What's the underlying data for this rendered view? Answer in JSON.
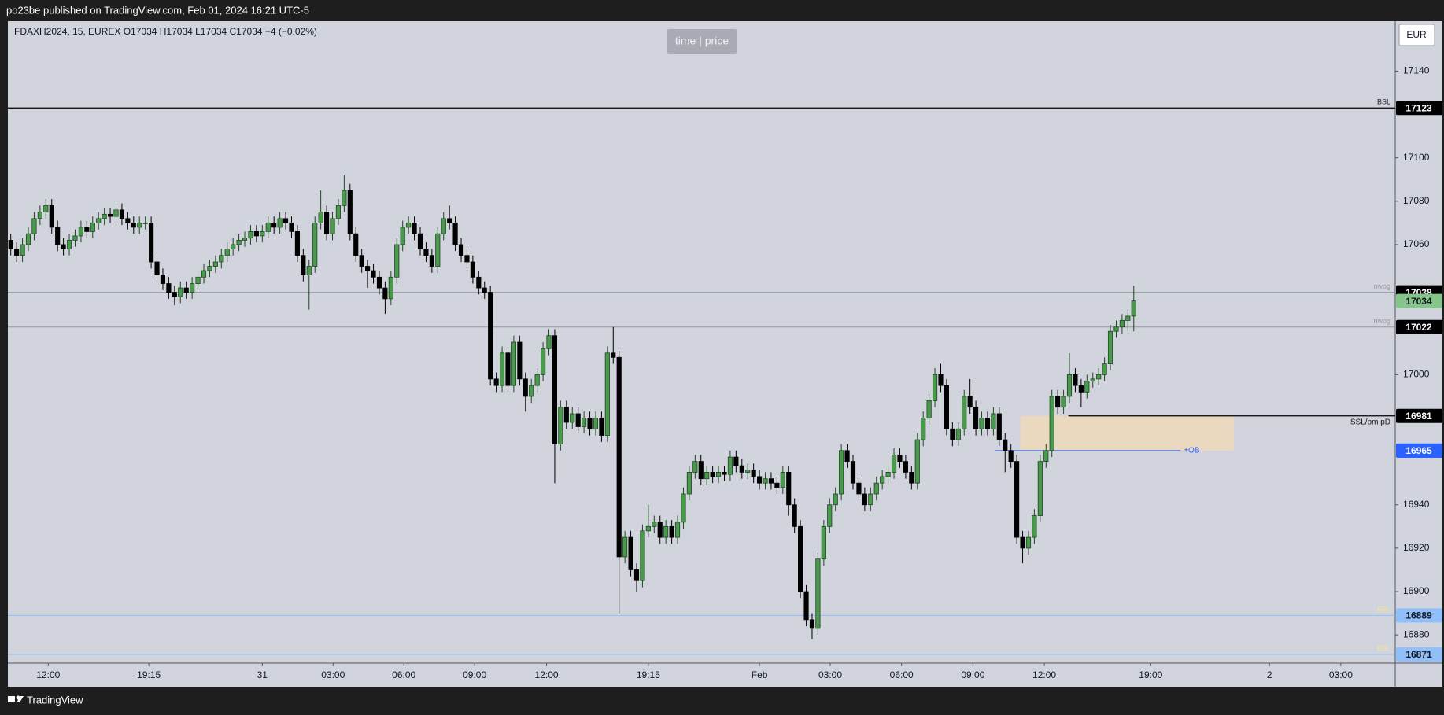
{
  "header": {
    "publisher": "po23be published on TradingView.com, Feb 01, 2024 16:21 UTC-5",
    "button": "time | price",
    "currency": "EUR",
    "footer": "TradingView"
  },
  "chart_data": {
    "type": "candlestick",
    "title": "FDAXH2024, 15, EUREX  O17034  H17034  L17034  C17034  −4 (−0.02%)",
    "up_color": "#4a9a4d",
    "up_border": "#1e4620",
    "down_color": "#000000",
    "grid": false,
    "ylim": [
      16867,
      17163
    ],
    "yticks": [
      16880,
      16900,
      16920,
      16940,
      17000,
      17060,
      17080,
      17100,
      17140
    ],
    "xlim": [
      -0.5,
      236.7
    ],
    "xticks": [
      {
        "value": 6.4,
        "label": "12:00"
      },
      {
        "value": 23.6,
        "label": "19:15"
      },
      {
        "value": 43,
        "label": "31"
      },
      {
        "value": 55.1,
        "label": "03:00"
      },
      {
        "value": 67.2,
        "label": "06:00"
      },
      {
        "value": 79.3,
        "label": "09:00"
      },
      {
        "value": 91.6,
        "label": "12:00"
      },
      {
        "value": 109,
        "label": "19:15"
      },
      {
        "value": 128,
        "label": "Feb"
      },
      {
        "value": 140.1,
        "label": "03:00"
      },
      {
        "value": 152.3,
        "label": "06:00"
      },
      {
        "value": 164.5,
        "label": "09:00"
      },
      {
        "value": 176.7,
        "label": "12:00"
      },
      {
        "value": 194.9,
        "label": "19:00"
      },
      {
        "value": 215.2,
        "label": "2"
      },
      {
        "value": 227.4,
        "label": "03:00"
      }
    ],
    "open": [
      17062,
      17058,
      17055,
      17060,
      17065,
      17072,
      17075,
      17078,
      17068,
      17060,
      17058,
      17062,
      17064,
      17068,
      17066,
      17070,
      17072,
      17074,
      17073,
      17076,
      17072,
      17070,
      17068,
      17070,
      17070,
      17052,
      17046,
      17042,
      17038,
      17036,
      17040,
      17038,
      17042,
      17045,
      17048,
      17050,
      17052,
      17055,
      17058,
      17060,
      17062,
      17063,
      17066,
      17064,
      17066,
      17070,
      17068,
      17072,
      17070,
      17066,
      17055,
      17046,
      17050,
      17070,
      17075,
      17065,
      17072,
      17078,
      17085,
      17065,
      17055,
      17050,
      17048,
      17045,
      17040,
      17035,
      17045,
      17060,
      17068,
      17070,
      17065,
      17058,
      17055,
      17050,
      17065,
      17072,
      17070,
      17060,
      17055,
      17052,
      17045,
      17040,
      17038,
      16998,
      16995,
      17010,
      16995,
      17015,
      16998,
      16990,
      16995,
      17000,
      17012,
      17018,
      16968,
      16985,
      16978,
      16982,
      16976,
      16980,
      16975,
      16980,
      16972,
      17010,
      17008,
      16916,
      16925,
      16910,
      16905,
      16928,
      16930,
      16932,
      16925,
      16930,
      16925,
      16932,
      16945,
      16955,
      16960,
      16952,
      16955,
      16953,
      16955,
      16954,
      16962,
      16958,
      16955,
      16956,
      16953,
      16950,
      16952,
      16950,
      16948,
      16955,
      16940,
      16930,
      16900,
      16887,
      16883,
      16915,
      16930,
      16940,
      16945,
      16965,
      16960,
      16950,
      16945,
      16940,
      16945,
      16950,
      16953,
      16955,
      16963,
      16960,
      16955,
      16950,
      16970,
      16980,
      16988,
      17000,
      16995,
      16975,
      16970,
      16975,
      16990,
      16985,
      16975,
      16980,
      16975,
      16982,
      16970,
      16965,
      16960,
      16925,
      16920,
      16925,
      16935,
      16960,
      16965,
      16990,
      16985,
      16990,
      17000,
      16995,
      16992,
      16997,
      16998,
      17000,
      17005,
      17020,
      17022,
      17025,
      17027
    ],
    "high": [
      17065,
      17061,
      17063,
      17068,
      17075,
      17078,
      17081,
      17081,
      17071,
      17063,
      17065,
      17067,
      17071,
      17071,
      17073,
      17075,
      17077,
      17077,
      17079,
      17079,
      17075,
      17073,
      17073,
      17073,
      17073,
      17055,
      17049,
      17045,
      17041,
      17043,
      17043,
      17045,
      17048,
      17051,
      17053,
      17055,
      17058,
      17061,
      17063,
      17065,
      17066,
      17069,
      17069,
      17069,
      17073,
      17073,
      17075,
      17075,
      17073,
      17069,
      17058,
      17053,
      17073,
      17085,
      17078,
      17075,
      17081,
      17092,
      17088,
      17068,
      17058,
      17053,
      17051,
      17048,
      17043,
      17048,
      17063,
      17071,
      17073,
      17073,
      17068,
      17061,
      17058,
      17068,
      17075,
      17078,
      17073,
      17063,
      17058,
      17055,
      17048,
      17043,
      17041,
      17001,
      17013,
      17013,
      17018,
      17018,
      17001,
      16998,
      17003,
      17015,
      17021,
      17021,
      16988,
      16988,
      16985,
      16985,
      16983,
      16983,
      16983,
      16983,
      17013,
      17022,
      17011,
      16928,
      16928,
      16913,
      16931,
      16940,
      16935,
      16935,
      16933,
      16933,
      16935,
      16948,
      16958,
      16963,
      16963,
      16958,
      16958,
      16958,
      16958,
      16965,
      16965,
      16961,
      16959,
      16959,
      16956,
      16955,
      16955,
      16953,
      16958,
      16958,
      16943,
      16933,
      16903,
      16890,
      16918,
      16933,
      16943,
      16948,
      16968,
      16968,
      16963,
      16953,
      16948,
      16948,
      16953,
      16956,
      16958,
      16966,
      16966,
      16963,
      16958,
      16973,
      16983,
      16991,
      17003,
      17005,
      16998,
      16978,
      16978,
      16993,
      16998,
      16988,
      16983,
      16983,
      16985,
      16985,
      16973,
      16968,
      16963,
      16928,
      16928,
      16938,
      16963,
      16968,
      16993,
      16993,
      16993,
      17010,
      17003,
      16998,
      17000,
      17001,
      17003,
      17008,
      17023,
      17025,
      17028,
      17030,
      17041
    ],
    "low": [
      17055,
      17052,
      17052,
      17057,
      17062,
      17069,
      17072,
      17065,
      17057,
      17055,
      17055,
      17059,
      17061,
      17063,
      17063,
      17067,
      17069,
      17070,
      17070,
      17069,
      17067,
      17065,
      17065,
      17067,
      17049,
      17043,
      17039,
      17035,
      17032,
      17033,
      17035,
      17035,
      17039,
      17042,
      17045,
      17047,
      17049,
      17052,
      17055,
      17057,
      17059,
      17060,
      17061,
      17061,
      17063,
      17065,
      17065,
      17067,
      17063,
      17052,
      17043,
      17030,
      17047,
      17067,
      17062,
      17062,
      17069,
      17075,
      17062,
      17052,
      17047,
      17040,
      17042,
      17037,
      17028,
      17032,
      17042,
      17057,
      17065,
      17062,
      17055,
      17052,
      17047,
      17047,
      17062,
      17067,
      17057,
      17052,
      17049,
      17042,
      17037,
      17035,
      16995,
      16992,
      16992,
      16992,
      16992,
      16995,
      16983,
      16987,
      16992,
      16997,
      17009,
      16950,
      16965,
      16975,
      16975,
      16973,
      16973,
      16972,
      16972,
      16969,
      16969,
      17005,
      16890,
      16913,
      16907,
      16900,
      16902,
      16925,
      16927,
      16922,
      16922,
      16922,
      16922,
      16929,
      16942,
      16952,
      16949,
      16949,
      16950,
      16950,
      16951,
      16951,
      16955,
      16952,
      16952,
      16950,
      16947,
      16947,
      16947,
      16945,
      16945,
      16935,
      16927,
      16897,
      16884,
      16878,
      16880,
      16912,
      16927,
      16937,
      16942,
      16957,
      16947,
      16942,
      16937,
      16937,
      16942,
      16947,
      16950,
      16952,
      16957,
      16952,
      16947,
      16947,
      16967,
      16977,
      16985,
      16992,
      16972,
      16967,
      16967,
      16972,
      16982,
      16972,
      16972,
      16972,
      16972,
      16967,
      16955,
      16957,
      16922,
      16913,
      16917,
      16922,
      16932,
      16957,
      16962,
      16982,
      16982,
      16987,
      16992,
      16985,
      16989,
      16994,
      16995,
      16997,
      17002,
      17017,
      17019,
      17020,
      17020
    ],
    "close": [
      17058,
      17055,
      17060,
      17065,
      17072,
      17075,
      17078,
      17068,
      17060,
      17058,
      17062,
      17064,
      17068,
      17066,
      17070,
      17072,
      17074,
      17073,
      17076,
      17072,
      17070,
      17068,
      17070,
      17070,
      17052,
      17046,
      17042,
      17038,
      17036,
      17040,
      17038,
      17042,
      17045,
      17048,
      17050,
      17052,
      17055,
      17058,
      17060,
      17062,
      17063,
      17066,
      17064,
      17066,
      17070,
      17068,
      17072,
      17070,
      17066,
      17055,
      17046,
      17050,
      17070,
      17075,
      17065,
      17072,
      17078,
      17085,
      17065,
      17055,
      17050,
      17048,
      17045,
      17040,
      17035,
      17045,
      17060,
      17068,
      17070,
      17065,
      17058,
      17055,
      17050,
      17065,
      17072,
      17070,
      17060,
      17055,
      17052,
      17045,
      17040,
      17038,
      16998,
      16995,
      17010,
      16995,
      17015,
      16998,
      16990,
      16995,
      17000,
      17012,
      17018,
      16968,
      16985,
      16978,
      16982,
      16976,
      16980,
      16975,
      16980,
      16972,
      17010,
      17008,
      16916,
      16925,
      16910,
      16905,
      16928,
      16930,
      16932,
      16925,
      16930,
      16925,
      16932,
      16945,
      16955,
      16960,
      16952,
      16955,
      16953,
      16955,
      16954,
      16962,
      16958,
      16955,
      16956,
      16953,
      16950,
      16952,
      16950,
      16948,
      16955,
      16940,
      16930,
      16900,
      16887,
      16883,
      16915,
      16930,
      16940,
      16945,
      16965,
      16960,
      16950,
      16945,
      16940,
      16945,
      16950,
      16953,
      16955,
      16963,
      16960,
      16955,
      16950,
      16970,
      16980,
      16988,
      17000,
      16995,
      16975,
      16970,
      16975,
      16990,
      16985,
      16975,
      16980,
      16975,
      16982,
      16970,
      16965,
      16960,
      16925,
      16920,
      16925,
      16935,
      16960,
      16965,
      16990,
      16985,
      16990,
      17000,
      16995,
      16992,
      16997,
      16998,
      17000,
      17005,
      17020,
      17022,
      17025,
      17027,
      17034
    ],
    "last_color": "#86c58a",
    "levels": [
      {
        "label": "BSL",
        "value": 17123,
        "color": "#000000",
        "badge": "#000000"
      },
      {
        "label": "nwog",
        "value": 17038,
        "color": "#9598a1",
        "badge": "#000000"
      },
      {
        "label": "nwog",
        "value": 17022,
        "color": "#9598a1",
        "badge": "#000000"
      },
      {
        "label": "SSL/pm pD",
        "value": 16981,
        "color": "#000000",
        "badge": "#000000",
        "start": 180.8
      },
      {
        "label": "+OB",
        "value": 16965,
        "color": "#2962ff",
        "badge": "#2962ff",
        "start": 168.2,
        "end": 200
      },
      {
        "label": "BSL",
        "value": 16889,
        "color": "#90bff9",
        "badge": "#90bff9"
      },
      {
        "label": "BSL",
        "value": 16871,
        "color": "#90bff9",
        "badge": "#90bff9"
      }
    ],
    "zones": [
      {
        "top": 16981,
        "bottom": 16965,
        "start": 172.6,
        "end": 209.1,
        "color": "#f2d9b5",
        "badge": "#2962ff"
      }
    ]
  }
}
